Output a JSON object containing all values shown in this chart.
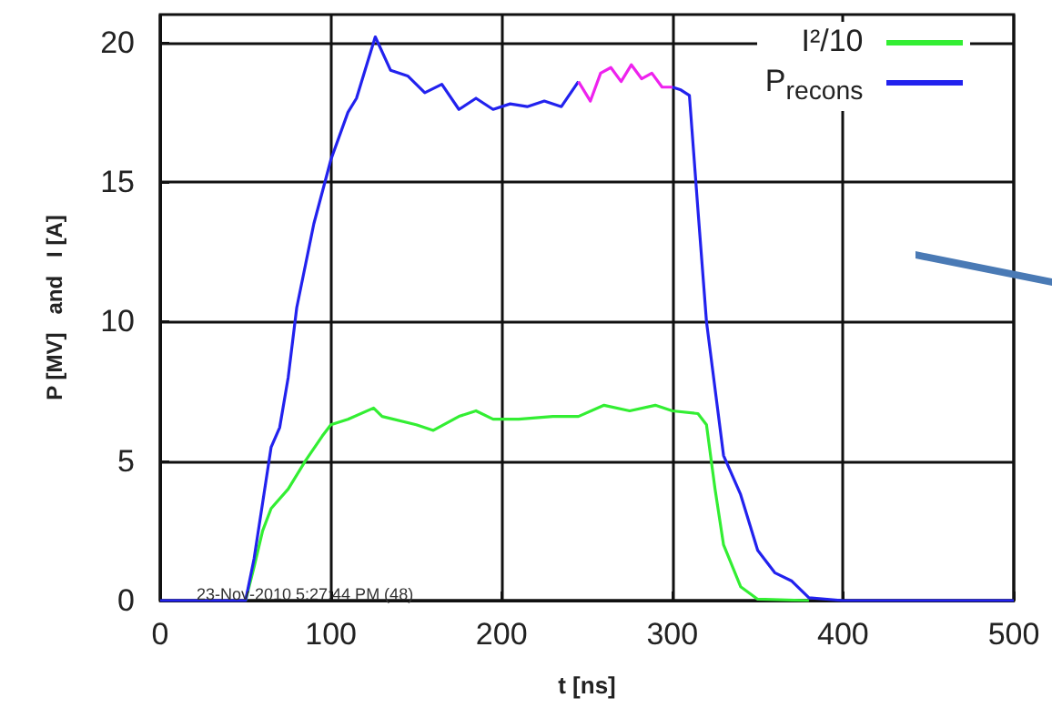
{
  "chart_data": {
    "type": "line",
    "xlabel": "t [ns]",
    "ylabel": "P [MV]   and   I [A]",
    "xlim": [
      0,
      500
    ],
    "xticks": [
      0,
      100,
      200,
      300,
      400,
      500
    ],
    "ylim": [
      0,
      21
    ],
    "yticks": [
      0,
      5,
      10,
      15,
      20
    ],
    "grid": true,
    "legend": "top right",
    "marker": "none",
    "line_style": "solid",
    "annotations": [
      "23-Nov-2010 5:27:44 PM (48)"
    ],
    "series": [
      {
        "name": "I²/10",
        "color": "#33ee33",
        "x": [
          50,
          55,
          60,
          65,
          75,
          85,
          95,
          100,
          110,
          125,
          130,
          150,
          160,
          175,
          185,
          195,
          210,
          230,
          245,
          260,
          275,
          290,
          300,
          315,
          320,
          325,
          330,
          340,
          350,
          380
        ],
        "values": [
          0,
          1.2,
          2.5,
          3.3,
          4,
          5,
          5.9,
          6.3,
          6.5,
          6.9,
          6.6,
          6.3,
          6.1,
          6.6,
          6.8,
          6.5,
          6.5,
          6.6,
          6.6,
          7,
          6.8,
          7,
          6.8,
          6.7,
          6.3,
          4,
          2,
          0.5,
          0.05,
          0
        ]
      },
      {
        "name": "P$_{recons}$",
        "color": "#2222ee",
        "x": [
          0,
          50,
          55,
          60,
          65,
          70,
          75,
          80,
          90,
          100,
          110,
          115,
          120,
          126,
          135,
          145,
          155,
          165,
          175,
          185,
          195,
          205,
          215,
          225,
          235,
          245,
          250,
          300,
          305,
          310,
          315,
          320,
          330,
          340,
          350,
          360,
          370,
          380,
          400,
          500
        ],
        "values": [
          0,
          0,
          1.5,
          3.5,
          5.5,
          6.2,
          8,
          10.5,
          13.5,
          15.8,
          17.5,
          18,
          19,
          20.2,
          19,
          18.8,
          18.2,
          18.5,
          17.6,
          18,
          17.6,
          17.8,
          17.7,
          17.9,
          17.7,
          18.6,
          null,
          18.4,
          18.3,
          18.1,
          14,
          10,
          5.2,
          3.8,
          1.8,
          1,
          0.7,
          0.1,
          0,
          0
        ]
      },
      {
        "color": "#ee22ee",
        "x": [
          245,
          252,
          258,
          264,
          270,
          276,
          282,
          288,
          294,
          300
        ],
        "values": [
          18.6,
          17.9,
          18.9,
          19.1,
          18.6,
          19.2,
          18.7,
          18.9,
          18.4,
          18.4
        ]
      }
    ]
  }
}
